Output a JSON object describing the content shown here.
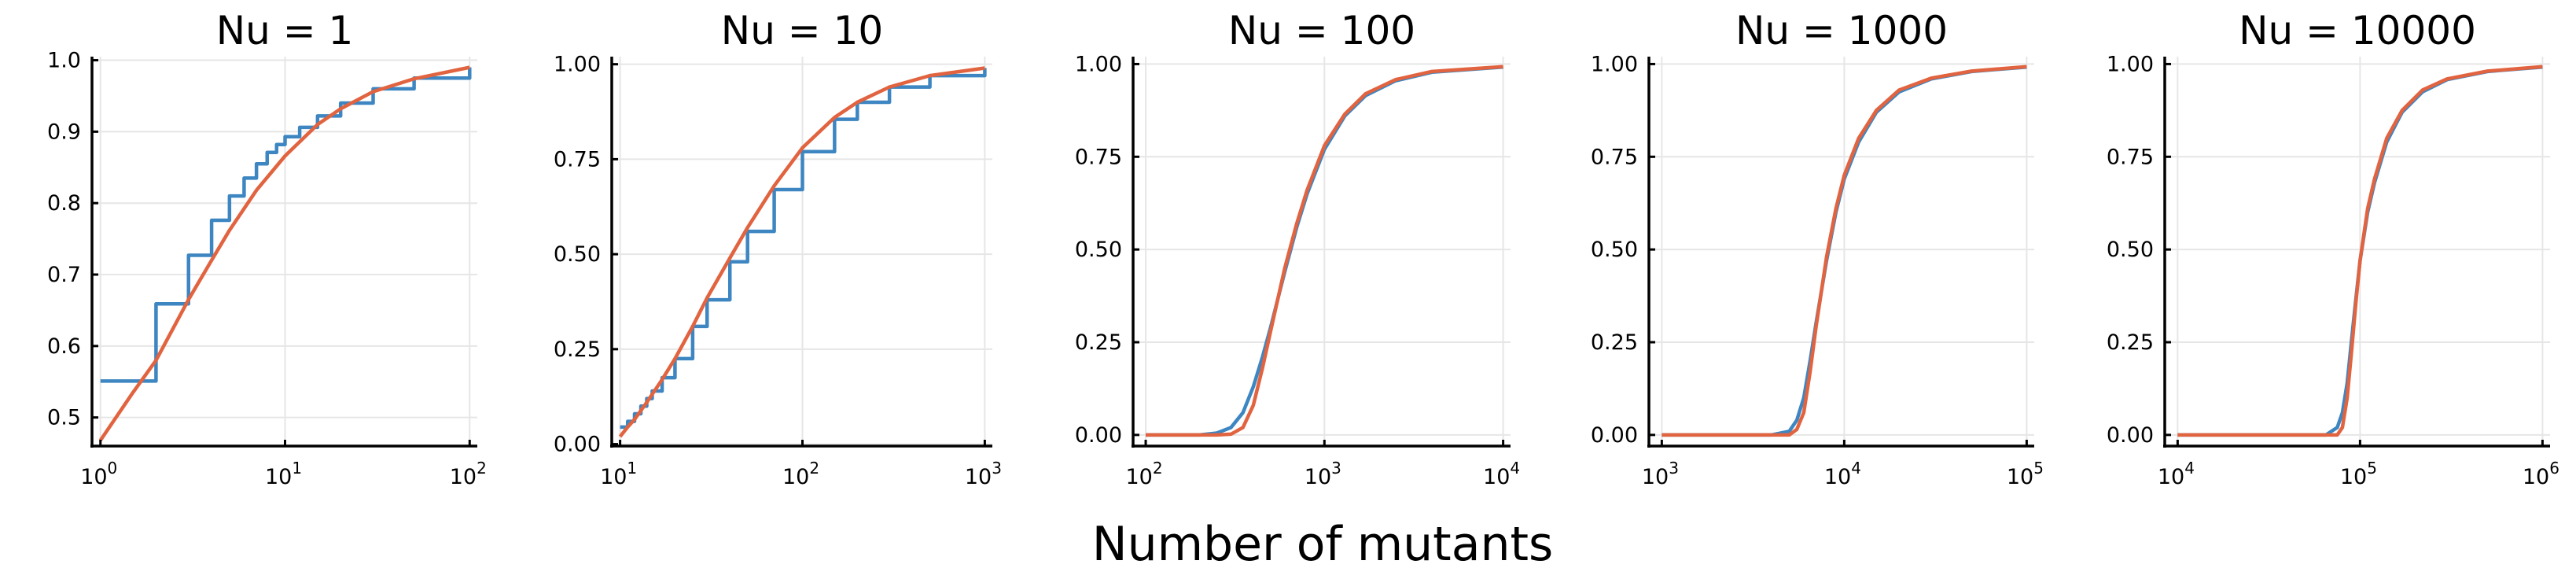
{
  "figure": {
    "xlabel": "Number of mutants"
  },
  "colors": {
    "series_step": "#3d86c1",
    "series_curve": "#e1633f",
    "grid": "#e6e6e6",
    "axis": "#000000"
  },
  "chart_data": [
    {
      "type": "line",
      "title": "Nu = 1",
      "xscale": "log",
      "xlim": [
        0.9,
        110
      ],
      "ylim": [
        0.46,
        1.005
      ],
      "xticks": [
        {
          "value": 1,
          "base": "10",
          "exp": "0"
        },
        {
          "value": 10,
          "base": "10",
          "exp": "1"
        },
        {
          "value": 100,
          "base": "10",
          "exp": "2"
        }
      ],
      "yticks": [
        {
          "value": 0.5,
          "label": "0.5"
        },
        {
          "value": 0.6,
          "label": "0.6"
        },
        {
          "value": 0.7,
          "label": "0.7"
        },
        {
          "value": 0.8,
          "label": "0.8"
        },
        {
          "value": 0.9,
          "label": "0.9"
        },
        {
          "value": 1.0,
          "label": "1.0"
        }
      ],
      "grid": true,
      "legend": "none",
      "series": [
        {
          "kind": "step",
          "x": [
            1,
            2,
            3,
            4,
            5,
            6,
            7,
            8,
            9,
            10,
            12,
            15,
            20,
            30,
            50,
            100
          ],
          "y": [
            0.551,
            0.659,
            0.727,
            0.776,
            0.81,
            0.835,
            0.855,
            0.871,
            0.882,
            0.893,
            0.906,
            0.922,
            0.94,
            0.96,
            0.975,
            0.99
          ]
        },
        {
          "kind": "smooth",
          "x": [
            1,
            1.5,
            2,
            3,
            4,
            5,
            7,
            10,
            15,
            20,
            30,
            50,
            100
          ],
          "y": [
            0.468,
            0.535,
            0.58,
            0.665,
            0.72,
            0.762,
            0.818,
            0.866,
            0.91,
            0.932,
            0.956,
            0.974,
            0.99
          ]
        }
      ]
    },
    {
      "type": "line",
      "title": "Nu = 10",
      "xscale": "log",
      "xlim": [
        9,
        1100
      ],
      "ylim": [
        -0.005,
        1.02
      ],
      "xticks": [
        {
          "value": 10,
          "base": "10",
          "exp": "1"
        },
        {
          "value": 100,
          "base": "10",
          "exp": "2"
        },
        {
          "value": 1000,
          "base": "10",
          "exp": "3"
        }
      ],
      "yticks": [
        {
          "value": 0.0,
          "label": "0.00"
        },
        {
          "value": 0.25,
          "label": "0.25"
        },
        {
          "value": 0.5,
          "label": "0.50"
        },
        {
          "value": 0.75,
          "label": "0.75"
        },
        {
          "value": 1.0,
          "label": "1.00"
        }
      ],
      "grid": true,
      "legend": "none",
      "series": [
        {
          "kind": "step",
          "x": [
            10,
            11,
            12,
            13,
            14,
            15,
            17,
            20,
            25,
            30,
            40,
            50,
            70,
            100,
            150,
            200,
            300,
            500,
            1000
          ],
          "y": [
            0.045,
            0.06,
            0.08,
            0.1,
            0.12,
            0.14,
            0.175,
            0.225,
            0.31,
            0.38,
            0.48,
            0.56,
            0.67,
            0.77,
            0.855,
            0.9,
            0.94,
            0.97,
            0.99
          ]
        },
        {
          "kind": "smooth",
          "x": [
            10,
            11,
            12,
            14,
            17,
            20,
            25,
            30,
            40,
            50,
            70,
            100,
            150,
            200,
            300,
            500,
            1000
          ],
          "y": [
            0.02,
            0.045,
            0.065,
            0.11,
            0.17,
            0.225,
            0.31,
            0.385,
            0.49,
            0.57,
            0.68,
            0.78,
            0.86,
            0.9,
            0.94,
            0.97,
            0.99
          ]
        }
      ]
    },
    {
      "type": "line",
      "title": "Nu = 100",
      "xscale": "log",
      "xlim": [
        85,
        11000
      ],
      "ylim": [
        -0.03,
        1.02
      ],
      "xticks": [
        {
          "value": 100,
          "base": "10",
          "exp": "2"
        },
        {
          "value": 1000,
          "base": "10",
          "exp": "3"
        },
        {
          "value": 10000,
          "base": "10",
          "exp": "4"
        }
      ],
      "yticks": [
        {
          "value": 0.0,
          "label": "0.00"
        },
        {
          "value": 0.25,
          "label": "0.25"
        },
        {
          "value": 0.5,
          "label": "0.50"
        },
        {
          "value": 0.75,
          "label": "0.75"
        },
        {
          "value": 1.0,
          "label": "1.00"
        }
      ],
      "grid": true,
      "legend": "none",
      "series": [
        {
          "kind": "smooth",
          "x": [
            100,
            200,
            250,
            300,
            350,
            400,
            450,
            500,
            600,
            700,
            800,
            1000,
            1300,
            1700,
            2500,
            4000,
            10000
          ],
          "y": [
            0.0,
            0.0,
            0.005,
            0.02,
            0.06,
            0.13,
            0.21,
            0.29,
            0.44,
            0.56,
            0.65,
            0.77,
            0.86,
            0.915,
            0.955,
            0.978,
            0.992
          ]
        },
        {
          "kind": "smooth",
          "x": [
            100,
            250,
            300,
            350,
            400,
            450,
            500,
            600,
            700,
            800,
            1000,
            1300,
            1700,
            2500,
            4000,
            10000
          ],
          "y": [
            0.0,
            0.0,
            0.002,
            0.02,
            0.08,
            0.18,
            0.28,
            0.45,
            0.57,
            0.66,
            0.78,
            0.865,
            0.92,
            0.958,
            0.98,
            0.993
          ]
        }
      ]
    },
    {
      "type": "line",
      "title": "Nu = 1000",
      "xscale": "log",
      "xlim": [
        850,
        110000
      ],
      "ylim": [
        -0.03,
        1.02
      ],
      "xticks": [
        {
          "value": 1000,
          "base": "10",
          "exp": "3"
        },
        {
          "value": 10000,
          "base": "10",
          "exp": "4"
        },
        {
          "value": 100000,
          "base": "10",
          "exp": "5"
        }
      ],
      "yticks": [
        {
          "value": 0.0,
          "label": "0.00"
        },
        {
          "value": 0.25,
          "label": "0.25"
        },
        {
          "value": 0.5,
          "label": "0.50"
        },
        {
          "value": 0.75,
          "label": "0.75"
        },
        {
          "value": 1.0,
          "label": "1.00"
        }
      ],
      "grid": true,
      "legend": "none",
      "series": [
        {
          "kind": "smooth",
          "x": [
            1000,
            4000,
            5000,
            5500,
            6000,
            6500,
            7000,
            8000,
            9000,
            10000,
            12000,
            15000,
            20000,
            30000,
            50000,
            100000
          ],
          "y": [
            0.0,
            0.0,
            0.01,
            0.04,
            0.1,
            0.2,
            0.3,
            0.47,
            0.6,
            0.69,
            0.79,
            0.87,
            0.925,
            0.96,
            0.98,
            0.992
          ]
        },
        {
          "kind": "smooth",
          "x": [
            1000,
            5000,
            5500,
            6000,
            6500,
            7000,
            8000,
            9000,
            10000,
            12000,
            15000,
            20000,
            30000,
            50000,
            100000
          ],
          "y": [
            0.0,
            0.0,
            0.015,
            0.06,
            0.17,
            0.29,
            0.48,
            0.61,
            0.7,
            0.8,
            0.875,
            0.93,
            0.962,
            0.981,
            0.993
          ]
        }
      ]
    },
    {
      "type": "line",
      "title": "Nu = 10000",
      "xscale": "log",
      "xlim": [
        8500,
        1100000
      ],
      "ylim": [
        -0.03,
        1.02
      ],
      "xticks": [
        {
          "value": 10000,
          "base": "10",
          "exp": "4"
        },
        {
          "value": 100000,
          "base": "10",
          "exp": "5"
        },
        {
          "value": 1000000,
          "base": "10",
          "exp": "6"
        }
      ],
      "yticks": [
        {
          "value": 0.0,
          "label": "0.00"
        },
        {
          "value": 0.25,
          "label": "0.25"
        },
        {
          "value": 0.5,
          "label": "0.50"
        },
        {
          "value": 0.75,
          "label": "0.75"
        },
        {
          "value": 1.0,
          "label": "1.00"
        }
      ],
      "grid": true,
      "legend": "none",
      "series": [
        {
          "kind": "smooth",
          "x": [
            10000,
            65000,
            75000,
            80000,
            85000,
            90000,
            95000,
            100000,
            110000,
            120000,
            140000,
            170000,
            220000,
            300000,
            500000,
            1000000
          ],
          "y": [
            0.0,
            0.0,
            0.02,
            0.06,
            0.14,
            0.26,
            0.37,
            0.47,
            0.6,
            0.68,
            0.79,
            0.87,
            0.925,
            0.958,
            0.98,
            0.992
          ]
        },
        {
          "kind": "smooth",
          "x": [
            10000,
            75000,
            80000,
            85000,
            90000,
            95000,
            100000,
            110000,
            120000,
            140000,
            170000,
            220000,
            300000,
            500000,
            1000000
          ],
          "y": [
            0.0,
            0.0,
            0.02,
            0.1,
            0.23,
            0.36,
            0.47,
            0.61,
            0.69,
            0.8,
            0.875,
            0.93,
            0.96,
            0.981,
            0.993
          ]
        }
      ]
    }
  ]
}
